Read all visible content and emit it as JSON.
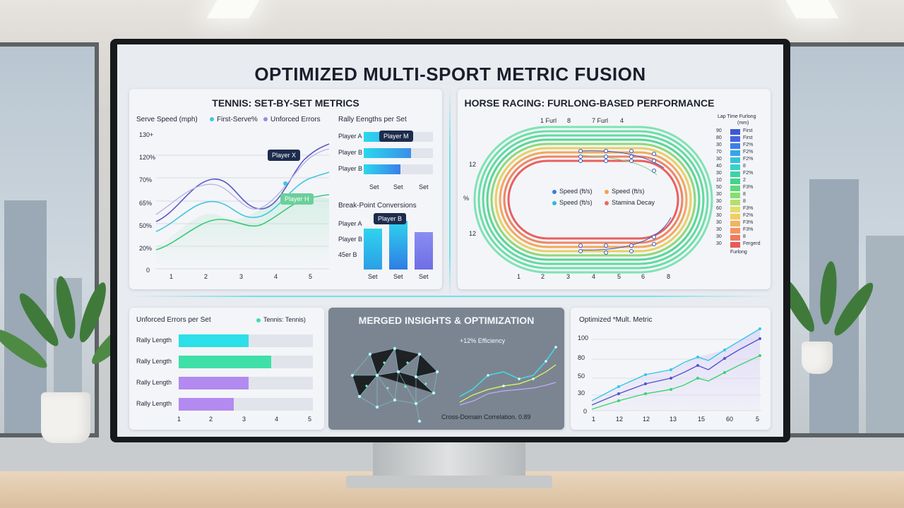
{
  "dashboard": {
    "title": "OPTIMIZED MULTI-SPORT METRIC FUSION"
  },
  "tennis": {
    "title": "TENNIS: SET-BY-SET METRICS",
    "serve_title": "Serve Speed (mph)",
    "legend_first": "First-Serve%",
    "legend_errors": "Unforced Errors",
    "y_ticks": [
      "130+",
      "120%",
      "70%",
      "65%",
      "50%",
      "20%",
      "0"
    ],
    "x_ticks": [
      "1",
      "2",
      "3",
      "4",
      "5"
    ],
    "tooltip_top": "Player X",
    "tooltip_mid": "Player H",
    "colors": {
      "line1": "#5b58c8",
      "line2": "#3ec8e0",
      "line3": "#39c77a",
      "line4": "#b7b4e6"
    },
    "rally_title": "Rally Eengths per Set",
    "rally_rows": [
      {
        "label": "Player A",
        "value": 0.55
      },
      {
        "label": "Player B",
        "value": 0.68
      },
      {
        "label": "Player B",
        "value": 0.53
      }
    ],
    "rally_tooltip": "Player M",
    "rally_x_ticks": [
      "Set",
      "Set",
      "Set"
    ],
    "bp_title": "Break-Point Conversions",
    "bp_rows": [
      "Player A",
      "Player B",
      "45er B"
    ],
    "bp_tooltip": "Player B",
    "bp_bars": [
      0.78,
      0.93,
      0.72
    ],
    "bp_x_ticks": [
      "Set",
      "Set",
      "Set"
    ]
  },
  "horse": {
    "title": "HORSE RACING: FURLONG-BASED PERFORMANCE",
    "top_labels": [
      "1 Furl",
      "8",
      "7 Furl",
      "4"
    ],
    "left_labels": [
      "12",
      "%",
      "12"
    ],
    "bottom_ticks": [
      "1",
      "2",
      "3",
      "4",
      "5",
      "6",
      "8"
    ],
    "legend": [
      {
        "label": "Speed (ft/s)",
        "color": "#3d7be0"
      },
      {
        "label": "Speed (ft/s)",
        "color": "#f0a448"
      },
      {
        "label": "Speed (ft/s)",
        "color": "#2fb7d8"
      },
      {
        "label": "Stamina Decay",
        "color": "#ea6b5a"
      }
    ],
    "side_title": "Lap Time Furlong",
    "side_unit": "(mm)",
    "side_rows": [
      {
        "value": "90",
        "text": "First",
        "color": "#3b59d6"
      },
      {
        "value": "80",
        "text": "First",
        "color": "#4367e0"
      },
      {
        "value": "30",
        "text": "F2%",
        "color": "#3f7de6"
      },
      {
        "value": "70",
        "text": "F2%",
        "color": "#36a6e6"
      },
      {
        "value": "30",
        "text": "F2%",
        "color": "#33c1e0"
      },
      {
        "value": "40",
        "text": "8",
        "color": "#39d0c8"
      },
      {
        "value": "30",
        "text": "F2%",
        "color": "#3bd4a7"
      },
      {
        "value": "10",
        "text": "2",
        "color": "#43d38a"
      },
      {
        "value": "50",
        "text": "F3%",
        "color": "#5ed97b"
      },
      {
        "value": "30",
        "text": "8",
        "color": "#86dd70"
      },
      {
        "value": "30",
        "text": "8",
        "color": "#b5e06a"
      },
      {
        "value": "60",
        "text": "F3%",
        "color": "#e0df66"
      },
      {
        "value": "30",
        "text": "F2%",
        "color": "#f3cd62"
      },
      {
        "value": "30",
        "text": "F3%",
        "color": "#f4b35e"
      },
      {
        "value": "30",
        "text": "F3%",
        "color": "#f19560"
      },
      {
        "value": "30",
        "text": "8",
        "color": "#ee7a5e"
      },
      {
        "value": "30",
        "text": "Fergerd",
        "color": "#e8595a"
      }
    ],
    "side_footer": "Furlong"
  },
  "errors": {
    "title": "Unforced Errors per Set",
    "legend": "Tennis: Tennis)",
    "rows": [
      {
        "label": "Rally Length",
        "value": 0.52,
        "color": "#2ddfe8"
      },
      {
        "label": "Rally Length",
        "value": 0.69,
        "color": "#3ee0a8"
      },
      {
        "label": "Rally Length",
        "value": 0.52,
        "color": "#b38af0"
      },
      {
        "label": "Rally Length",
        "value": 0.41,
        "color": "#b38af0"
      }
    ],
    "x_ticks": [
      "1",
      "2",
      "3",
      "4",
      "5"
    ]
  },
  "merged": {
    "title": "MERGED INSIGHTS & OPTIMIZATION",
    "efficiency": "+12% Efficiency",
    "correlation": "Cross-Domain Correlation. 0.89"
  },
  "optimized": {
    "title": "Optimized *Mult. Metric",
    "y_ticks": [
      "100",
      "80",
      "50",
      "30",
      "0"
    ],
    "x_ticks": [
      "1",
      "12",
      "12",
      "13",
      "15",
      "60",
      "5"
    ],
    "colors": {
      "a": "#34c8e6",
      "b": "#5353c8",
      "c": "#38d46e"
    }
  }
}
